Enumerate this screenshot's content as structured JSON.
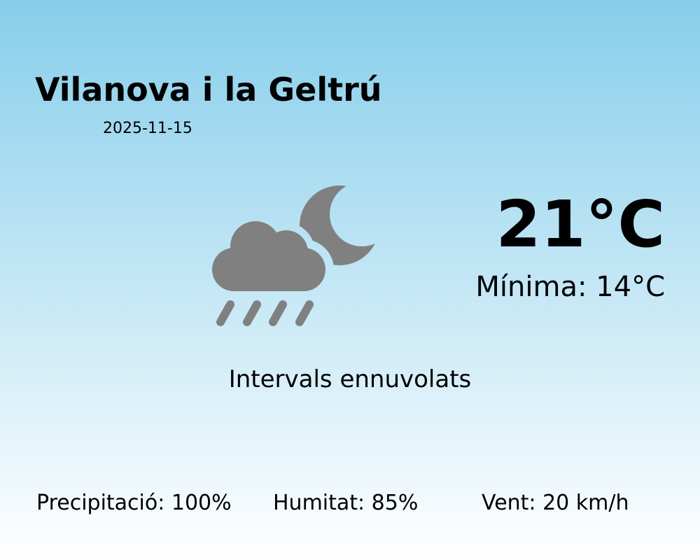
{
  "location": {
    "city": "Vilanova i la Geltrú",
    "date": "2025-11-15"
  },
  "weather": {
    "temperature": "21°C",
    "minimum": "Mínima: 14°C",
    "description": "Intervals ennuvolats",
    "icon": "night-cloud-rain-icon",
    "icon_color": "#808080"
  },
  "stats": {
    "precipitation": "Precipitació: 100%",
    "humidity": "Humitat: 85%",
    "wind": "Vent: 20 km/h"
  },
  "colors": {
    "background_top": "#87ceeb",
    "background_bottom": "#ffffff"
  }
}
